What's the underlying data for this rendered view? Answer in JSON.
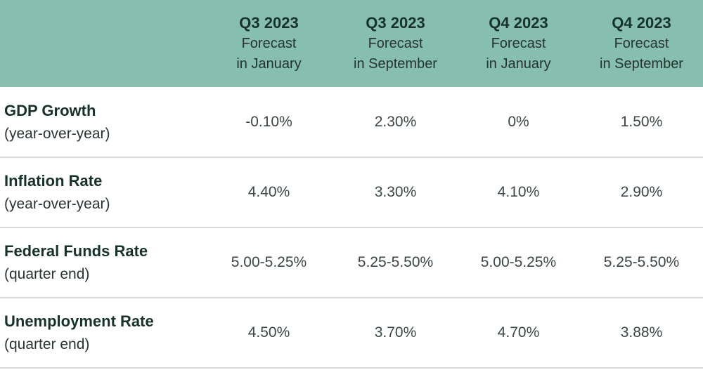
{
  "columns": [
    {
      "title": "",
      "subtitle_1": "",
      "subtitle_2": ""
    },
    {
      "title": "Q3 2023",
      "subtitle_1": "Forecast",
      "subtitle_2": "in January"
    },
    {
      "title": "Q3 2023",
      "subtitle_1": "Forecast",
      "subtitle_2": "in September"
    },
    {
      "title": "Q4 2023",
      "subtitle_1": "Forecast",
      "subtitle_2": "in January"
    },
    {
      "title": "Q4 2023",
      "subtitle_1": "Forecast",
      "subtitle_2": "in September"
    }
  ],
  "rows": [
    {
      "label": "GDP Growth",
      "sublabel": "(year-over-year)",
      "values": [
        "-0.10%",
        "2.30%",
        "0%",
        "1.50%"
      ]
    },
    {
      "label": "Inflation Rate",
      "sublabel": "(year-over-year)",
      "values": [
        "4.40%",
        "3.30%",
        "4.10%",
        "2.90%"
      ]
    },
    {
      "label": "Federal Funds Rate",
      "sublabel": "(quarter end)",
      "values": [
        "5.00-5.25%",
        "5.25-5.50%",
        "5.00-5.25%",
        "5.25-5.50%"
      ]
    },
    {
      "label": "Unemployment Rate",
      "sublabel": "(quarter end)",
      "values": [
        "4.50%",
        "3.70%",
        "4.70%",
        "3.88%"
      ]
    }
  ],
  "colors": {
    "header_bg": "#86bfaf",
    "row_divider": "#d6d9d8",
    "heading_text": "#16322b"
  }
}
